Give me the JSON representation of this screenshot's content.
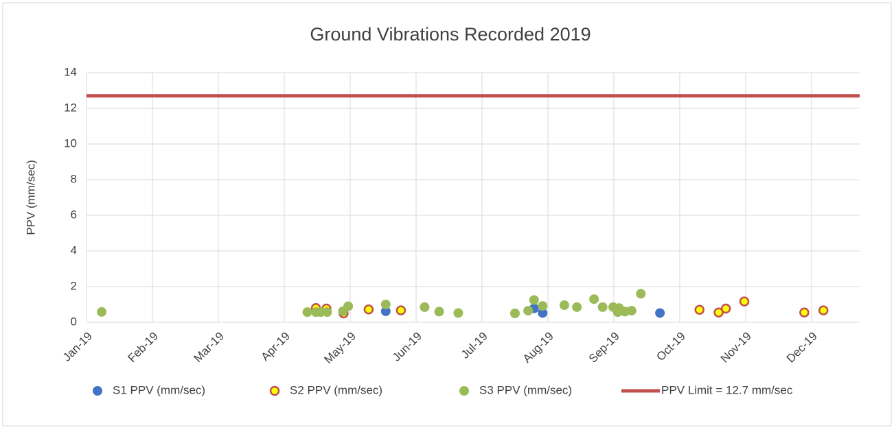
{
  "chart_data": {
    "type": "scatter",
    "title": "Ground Vibrations Recorded 2019",
    "y_label": "PPV (mm/sec)",
    "xlim": [
      0,
      11.73
    ],
    "ylim": [
      0,
      14
    ],
    "xticks": [
      {
        "value": 0,
        "label": "Jan-19"
      },
      {
        "value": 1,
        "label": "Feb-19"
      },
      {
        "value": 2,
        "label": "Mar-19"
      },
      {
        "value": 3,
        "label": "Apr-19"
      },
      {
        "value": 4,
        "label": "May-19"
      },
      {
        "value": 5,
        "label": "Jun-19"
      },
      {
        "value": 6,
        "label": "Jul-19"
      },
      {
        "value": 7,
        "label": "Aug-19"
      },
      {
        "value": 8,
        "label": "Sep-19"
      },
      {
        "value": 9,
        "label": "Oct-19"
      },
      {
        "value": 10,
        "label": "Nov-19"
      },
      {
        "value": 11,
        "label": "Dec-19"
      }
    ],
    "yticks": [
      0,
      2,
      4,
      6,
      8,
      10,
      12,
      14
    ],
    "grid": true,
    "legend": "bottom",
    "series": [
      {
        "name": "S1 PPV (mm/sec)",
        "mode": "markers",
        "color": "#4472c4",
        "x": [
          4.54,
          6.79,
          6.92,
          8.7
        ],
        "values": [
          0.62,
          0.78,
          0.52,
          0.52
        ]
      },
      {
        "name": "S2 PPV (mm/sec)",
        "mode": "markers",
        "color": "#ffff00",
        "edge_color": "#c0504d",
        "x": [
          3.48,
          3.64,
          3.9,
          4.28,
          4.77,
          9.3,
          9.59,
          9.7,
          9.98,
          10.89,
          11.18
        ],
        "values": [
          0.8,
          0.77,
          0.5,
          0.72,
          0.67,
          0.7,
          0.55,
          0.77,
          1.17,
          0.55,
          0.67
        ]
      },
      {
        "name": "S3 PPV (mm/sec)",
        "mode": "markers",
        "color": "#9bbb59",
        "x": [
          0.23,
          3.35,
          3.48,
          3.55,
          3.65,
          3.89,
          3.97,
          4.54,
          5.13,
          5.35,
          5.64,
          6.5,
          6.7,
          6.79,
          6.92,
          7.25,
          7.44,
          7.7,
          7.83,
          7.99,
          8.06,
          8.08,
          8.17,
          8.27,
          8.41
        ],
        "values": [
          0.58,
          0.57,
          0.57,
          0.57,
          0.57,
          0.62,
          0.9,
          1.0,
          0.85,
          0.6,
          0.52,
          0.5,
          0.65,
          1.25,
          0.92,
          0.96,
          0.85,
          1.3,
          0.85,
          0.85,
          0.57,
          0.8,
          0.6,
          0.65,
          1.6
        ]
      },
      {
        "name": "PPV Limit = 12.7 mm/sec",
        "mode": "line",
        "color": "#c0504d",
        "x": [
          0,
          11.73
        ],
        "values": [
          12.7,
          12.7
        ]
      }
    ]
  }
}
